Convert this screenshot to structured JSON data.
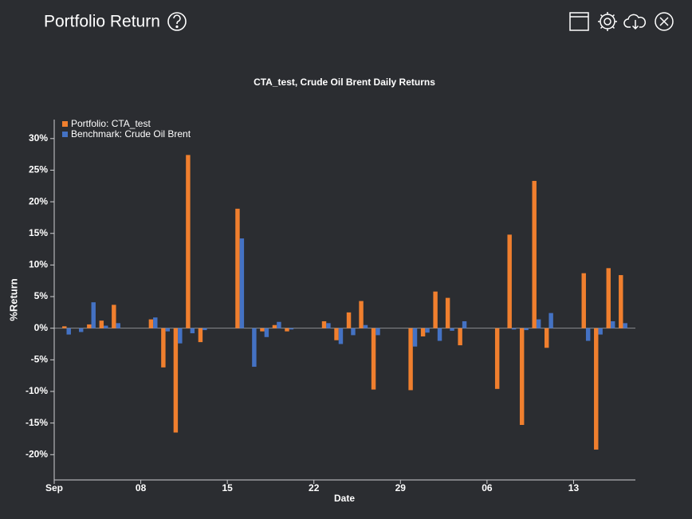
{
  "header": {
    "title": "Portfolio Return"
  },
  "chart_data": {
    "type": "bar",
    "title": "CTA_test, Crude Oil Brent Daily Returns",
    "x_label": "Date",
    "y_label": "%Return",
    "x": [
      "09-02",
      "09-03",
      "09-04",
      "09-05",
      "09-06",
      "09-09",
      "09-10",
      "09-11",
      "09-12",
      "09-13",
      "09-16",
      "09-17",
      "09-18",
      "09-19",
      "09-20",
      "09-23",
      "09-24",
      "09-25",
      "09-26",
      "09-27",
      "09-30",
      "10-01",
      "10-02",
      "10-03",
      "10-04",
      "10-07",
      "10-08",
      "10-09",
      "10-10",
      "10-11",
      "10-14",
      "10-15",
      "10-16",
      "10-17"
    ],
    "series": [
      {
        "name": "Portfolio: CTA_test",
        "color": "#f07f2e",
        "values": [
          0.3,
          0,
          0.6,
          1.2,
          3.7,
          1.4,
          -6.2,
          -16.5,
          27.4,
          -2.2,
          18.9,
          0,
          -0.5,
          0.5,
          -0.5,
          1.1,
          -1.9,
          2.5,
          4.3,
          -9.7,
          -9.8,
          -1.3,
          5.8,
          4.8,
          -2.7,
          -9.6,
          14.8,
          -15.3,
          23.3,
          -3.1,
          8.7,
          -19.2,
          9.5,
          8.4
        ]
      },
      {
        "name": "Benchmark: Crude Oil Brent",
        "color": "#4472c4",
        "values": [
          -1.0,
          -0.6,
          4.1,
          0.4,
          0.8,
          1.7,
          -0.5,
          -2.4,
          -0.8,
          -0.3,
          14.2,
          -6.1,
          -1.4,
          1.0,
          -0.2,
          0.8,
          -2.5,
          -1.1,
          0.5,
          -1.1,
          -2.9,
          -0.7,
          -2.0,
          -0.4,
          1.1,
          0,
          -0.2,
          -0.3,
          1.4,
          2.4,
          -2.0,
          -1.0,
          1.1,
          0.8
        ]
      }
    ],
    "xlim": [
      "09-01",
      "10-18"
    ],
    "xticks": [
      {
        "value": "09-01",
        "label": "Sep"
      },
      {
        "value": "09-08",
        "label": "08"
      },
      {
        "value": "09-15",
        "label": "15"
      },
      {
        "value": "09-22",
        "label": "22"
      },
      {
        "value": "09-29",
        "label": "29"
      },
      {
        "value": "10-06",
        "label": "06"
      },
      {
        "value": "10-13",
        "label": "13"
      }
    ],
    "ylim": [
      -24,
      33
    ],
    "yticks": [
      {
        "value": -20,
        "label": "-20%"
      },
      {
        "value": -15,
        "label": "-15%"
      },
      {
        "value": -10,
        "label": "-10%"
      },
      {
        "value": -5,
        "label": "-5%"
      },
      {
        "value": 0,
        "label": "0%"
      },
      {
        "value": 5,
        "label": "5%"
      },
      {
        "value": 10,
        "label": "10%"
      },
      {
        "value": 15,
        "label": "15%"
      },
      {
        "value": 20,
        "label": "20%"
      },
      {
        "value": 25,
        "label": "25%"
      },
      {
        "value": 30,
        "label": "30%"
      }
    ],
    "legend": "top-left"
  }
}
